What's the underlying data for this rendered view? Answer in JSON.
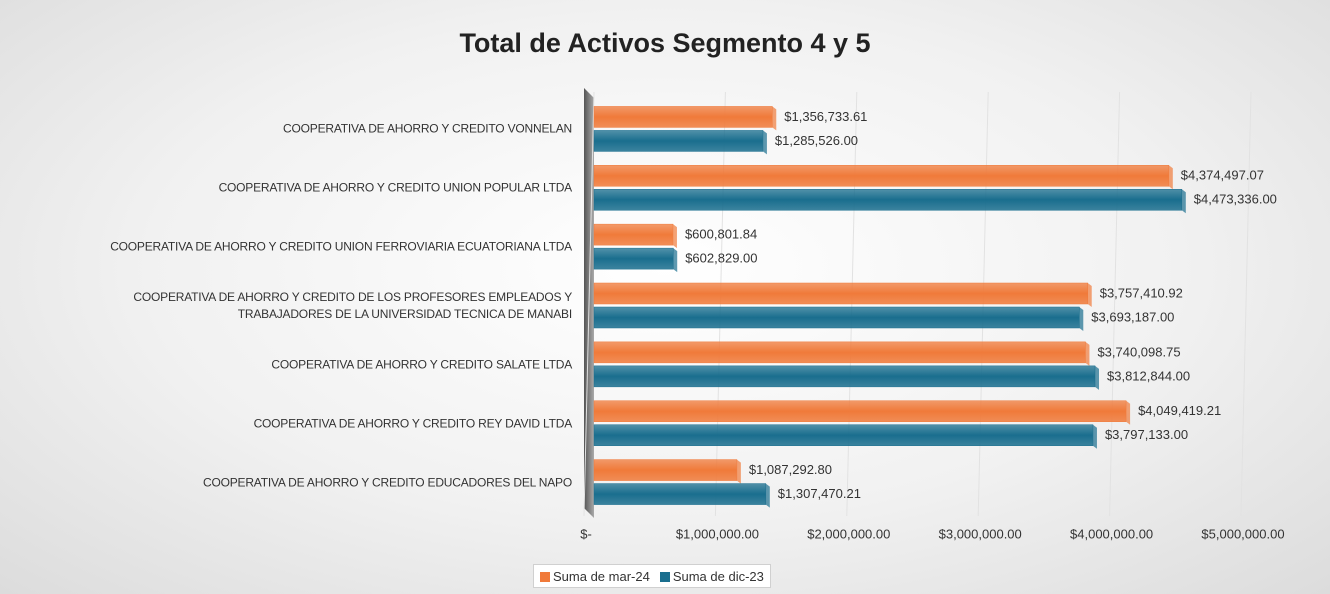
{
  "chart_data": {
    "type": "bar",
    "orientation": "horizontal",
    "title": "Total de Activos Segmento 4 y 5",
    "categories": [
      "COOPERATIVA DE AHORRO Y CREDITO VONNELAN",
      "COOPERATIVA DE AHORRO Y CREDITO UNION POPULAR LTDA",
      "COOPERATIVA DE AHORRO Y CREDITO UNION FERROVIARIA ECUATORIANA LTDA",
      "COOPERATIVA DE AHORRO Y CREDITO DE LOS PROFESORES EMPLEADOS Y\nTRABAJADORES DE LA UNIVERSIDAD TECNICA DE MANABI",
      "COOPERATIVA DE AHORRO Y CREDITO SALATE LTDA",
      "COOPERATIVA DE AHORRO Y CREDITO REY DAVID LTDA",
      "COOPERATIVA DE AHORRO Y CREDITO EDUCADORES DEL NAPO"
    ],
    "series": [
      {
        "name": "Suma de mar-24",
        "color": "#f07a3a",
        "values": [
          1356733.61,
          4374497.07,
          600801.84,
          3757410.92,
          3740098.75,
          4049419.21,
          1087292.8
        ],
        "value_labels": [
          "$1,356,733.61",
          "$4,374,497.07",
          "$600,801.84",
          "$3,757,410.92",
          "$3,740,098.75",
          "$4,049,419.21",
          "$1,087,292.80"
        ]
      },
      {
        "name": "Suma de dic-23",
        "color": "#1a6e8e",
        "values": [
          1285526.0,
          4473336.0,
          602829.0,
          3693187.0,
          3812844.0,
          3797133.0,
          1307470.21
        ],
        "value_labels": [
          "$1,285,526.00",
          "$4,473,336.00",
          "$602,829.00",
          "$3,693,187.00",
          "$3,812,844.00",
          "$3,797,133.00",
          "$1,307,470.21"
        ]
      }
    ],
    "xlim": [
      0,
      5000000
    ],
    "xticks": [
      {
        "value": 0,
        "label": "$-"
      },
      {
        "value": 1000000,
        "label": "$1,000,000.00"
      },
      {
        "value": 2000000,
        "label": "$2,000,000.00"
      },
      {
        "value": 3000000,
        "label": "$3,000,000.00"
      },
      {
        "value": 4000000,
        "label": "$4,000,000.00"
      },
      {
        "value": 5000000,
        "label": "$5,000,000.00"
      }
    ],
    "grid": true,
    "legend": "bottom"
  }
}
